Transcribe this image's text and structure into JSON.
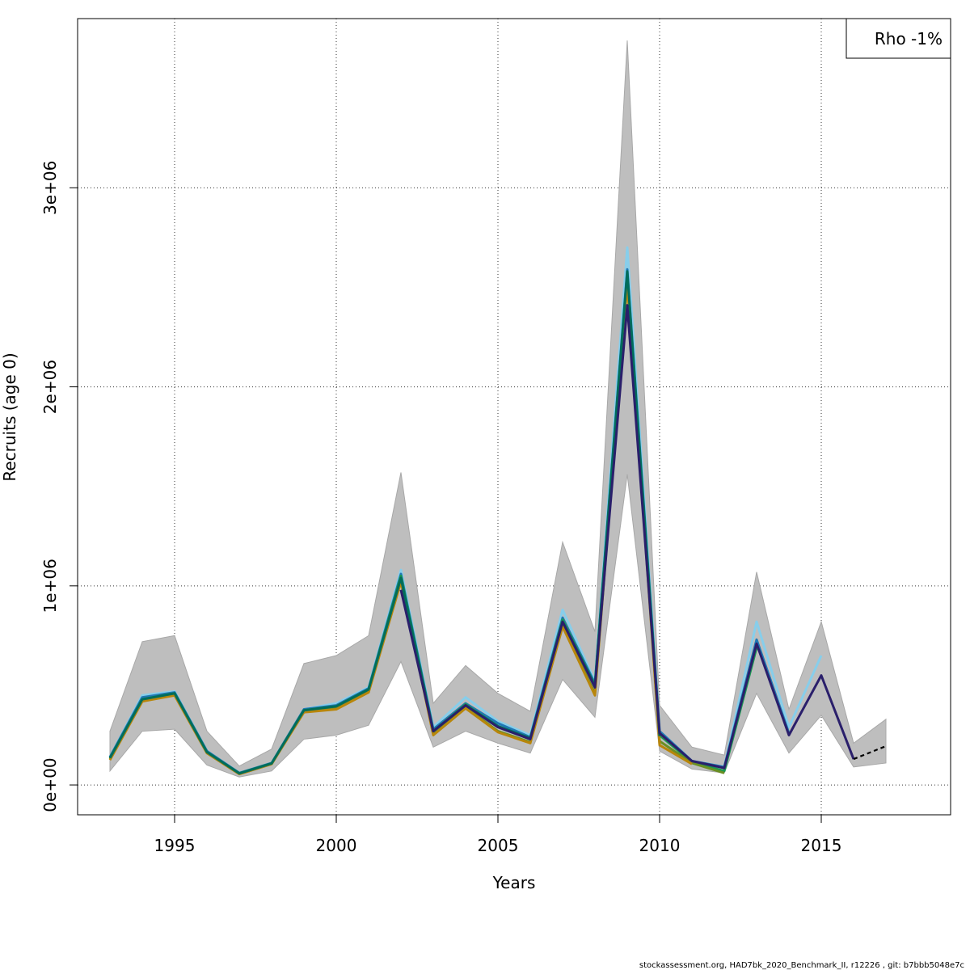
{
  "chart_data": {
    "type": "line",
    "xlabel": "Years",
    "ylabel": "Recruits (age 0)",
    "xlim": [
      1992,
      2019
    ],
    "ylim": [
      -150000,
      3850000
    ],
    "x_ticks": [
      1995,
      2000,
      2005,
      2010,
      2015
    ],
    "x_tick_labels": [
      "1995",
      "2000",
      "2005",
      "2010",
      "2015"
    ],
    "y_ticks": [
      0,
      1000000,
      2000000,
      3000000
    ],
    "y_tick_labels": [
      "0e+00",
      "1e+06",
      "2e+06",
      "3e+06"
    ],
    "grid": true,
    "legend": {
      "placement": "top-right",
      "text": "Rho -1%"
    },
    "footer": "stockassessment.org, HAD7bk_2020_Benchmark_II, r12226 , git: b7bbb5048e7c",
    "ribbon": {
      "color": "#bebebe",
      "x": [
        1993,
        1994,
        1995,
        1996,
        1997,
        1998,
        1999,
        2000,
        2001,
        2002,
        2003,
        2004,
        2005,
        2006,
        2007,
        2008,
        2009,
        2010,
        2011,
        2012,
        2013,
        2014,
        2015,
        2016,
        2017
      ],
      "lower": [
        70000,
        270000,
        280000,
        100000,
        40000,
        70000,
        230000,
        250000,
        300000,
        620000,
        190000,
        270000,
        210000,
        160000,
        530000,
        340000,
        1560000,
        170000,
        80000,
        60000,
        460000,
        160000,
        350000,
        90000,
        110000
      ],
      "upper": [
        270000,
        720000,
        750000,
        270000,
        95000,
        180000,
        610000,
        650000,
        750000,
        1570000,
        410000,
        600000,
        460000,
        370000,
        1220000,
        770000,
        3740000,
        400000,
        190000,
        150000,
        1070000,
        380000,
        820000,
        210000,
        330000
      ]
    },
    "series": [
      {
        "color": "#87ceeb",
        "x": [
          1993,
          1994,
          1995,
          1996,
          1997,
          1998,
          1999,
          2000,
          2001,
          2002,
          2003,
          2004,
          2005,
          2006,
          2007,
          2008,
          2009,
          2010,
          2011,
          2012,
          2013,
          2014,
          2015
        ],
        "values": [
          140000,
          450000,
          470000,
          170000,
          60000,
          110000,
          380000,
          410000,
          490000,
          1080000,
          290000,
          440000,
          320000,
          250000,
          880000,
          520000,
          2700000,
          270000,
          120000,
          90000,
          820000,
          290000,
          650000
        ]
      },
      {
        "color": "#1f78b4",
        "x": [
          1993,
          1994,
          1995,
          1996,
          1997,
          1998,
          1999,
          2000,
          2001,
          2002,
          2003,
          2004,
          2005,
          2006,
          2007,
          2008,
          2009,
          2010,
          2011,
          2012,
          2013,
          2014
        ],
        "values": [
          140000,
          440000,
          465000,
          170000,
          60000,
          110000,
          380000,
          400000,
          485000,
          1060000,
          280000,
          410000,
          310000,
          240000,
          840000,
          510000,
          2590000,
          270000,
          120000,
          90000,
          730000,
          260000
        ]
      },
      {
        "color": "#1a9850",
        "x": [
          1993,
          1994,
          1995,
          1996,
          1997,
          1998,
          1999,
          2000,
          2001,
          2002,
          2003,
          2004,
          2005,
          2006,
          2007,
          2008,
          2009,
          2010,
          2011,
          2012,
          2013
        ],
        "values": [
          135000,
          430000,
          460000,
          165000,
          58000,
          108000,
          375000,
          395000,
          480000,
          1050000,
          270000,
          405000,
          295000,
          230000,
          830000,
          500000,
          2560000,
          250000,
          115000,
          70000,
          690000
        ]
      },
      {
        "color": "#6b8e23",
        "x": [
          1993,
          1994,
          1995,
          1996,
          1997,
          1998,
          1999,
          2000,
          2001,
          2002,
          2003,
          2004,
          2005,
          2006,
          2007,
          2008,
          2009,
          2010,
          2011,
          2012
        ],
        "values": [
          130000,
          420000,
          455000,
          160000,
          55000,
          105000,
          370000,
          385000,
          470000,
          1040000,
          255000,
          390000,
          270000,
          215000,
          800000,
          460000,
          2530000,
          220000,
          110000,
          60000
        ]
      },
      {
        "color": "#b8860b",
        "x": [
          1993,
          1994,
          1995,
          1996,
          1997,
          1998,
          1999,
          2000,
          2001,
          2002,
          2003,
          2004,
          2005,
          2006,
          2007,
          2008,
          2009,
          2010,
          2011
        ],
        "values": [
          125000,
          420000,
          450000,
          160000,
          55000,
          105000,
          365000,
          380000,
          465000,
          1020000,
          250000,
          385000,
          265000,
          210000,
          795000,
          450000,
          2520000,
          200000,
          105000
        ]
      },
      {
        "color": "#006d5b",
        "x": [
          1993,
          1994,
          1995,
          1996,
          1997,
          1998,
          1999,
          2000,
          2001,
          2002,
          2003,
          2004,
          2005,
          2006,
          2007,
          2008,
          2009,
          2010
        ],
        "values": [
          135000,
          430000,
          460000,
          165000,
          58000,
          108000,
          375000,
          395000,
          480000,
          1040000,
          270000,
          400000,
          295000,
          235000,
          820000,
          500000,
          2580000,
          245000
        ]
      },
      {
        "color": "#2a1f6b",
        "x": [
          2002,
          2003,
          2004,
          2005,
          2006,
          2007,
          2008,
          2009,
          2010,
          2011,
          2012,
          2013,
          2014,
          2015,
          2016
        ],
        "values": [
          980000,
          270000,
          400000,
          290000,
          230000,
          820000,
          490000,
          2410000,
          260000,
          120000,
          85000,
          710000,
          250000,
          550000,
          130000
        ]
      },
      {
        "color": "#000000",
        "dashed": true,
        "x": [
          2016,
          2017
        ],
        "values": [
          130000,
          195000
        ]
      }
    ]
  }
}
